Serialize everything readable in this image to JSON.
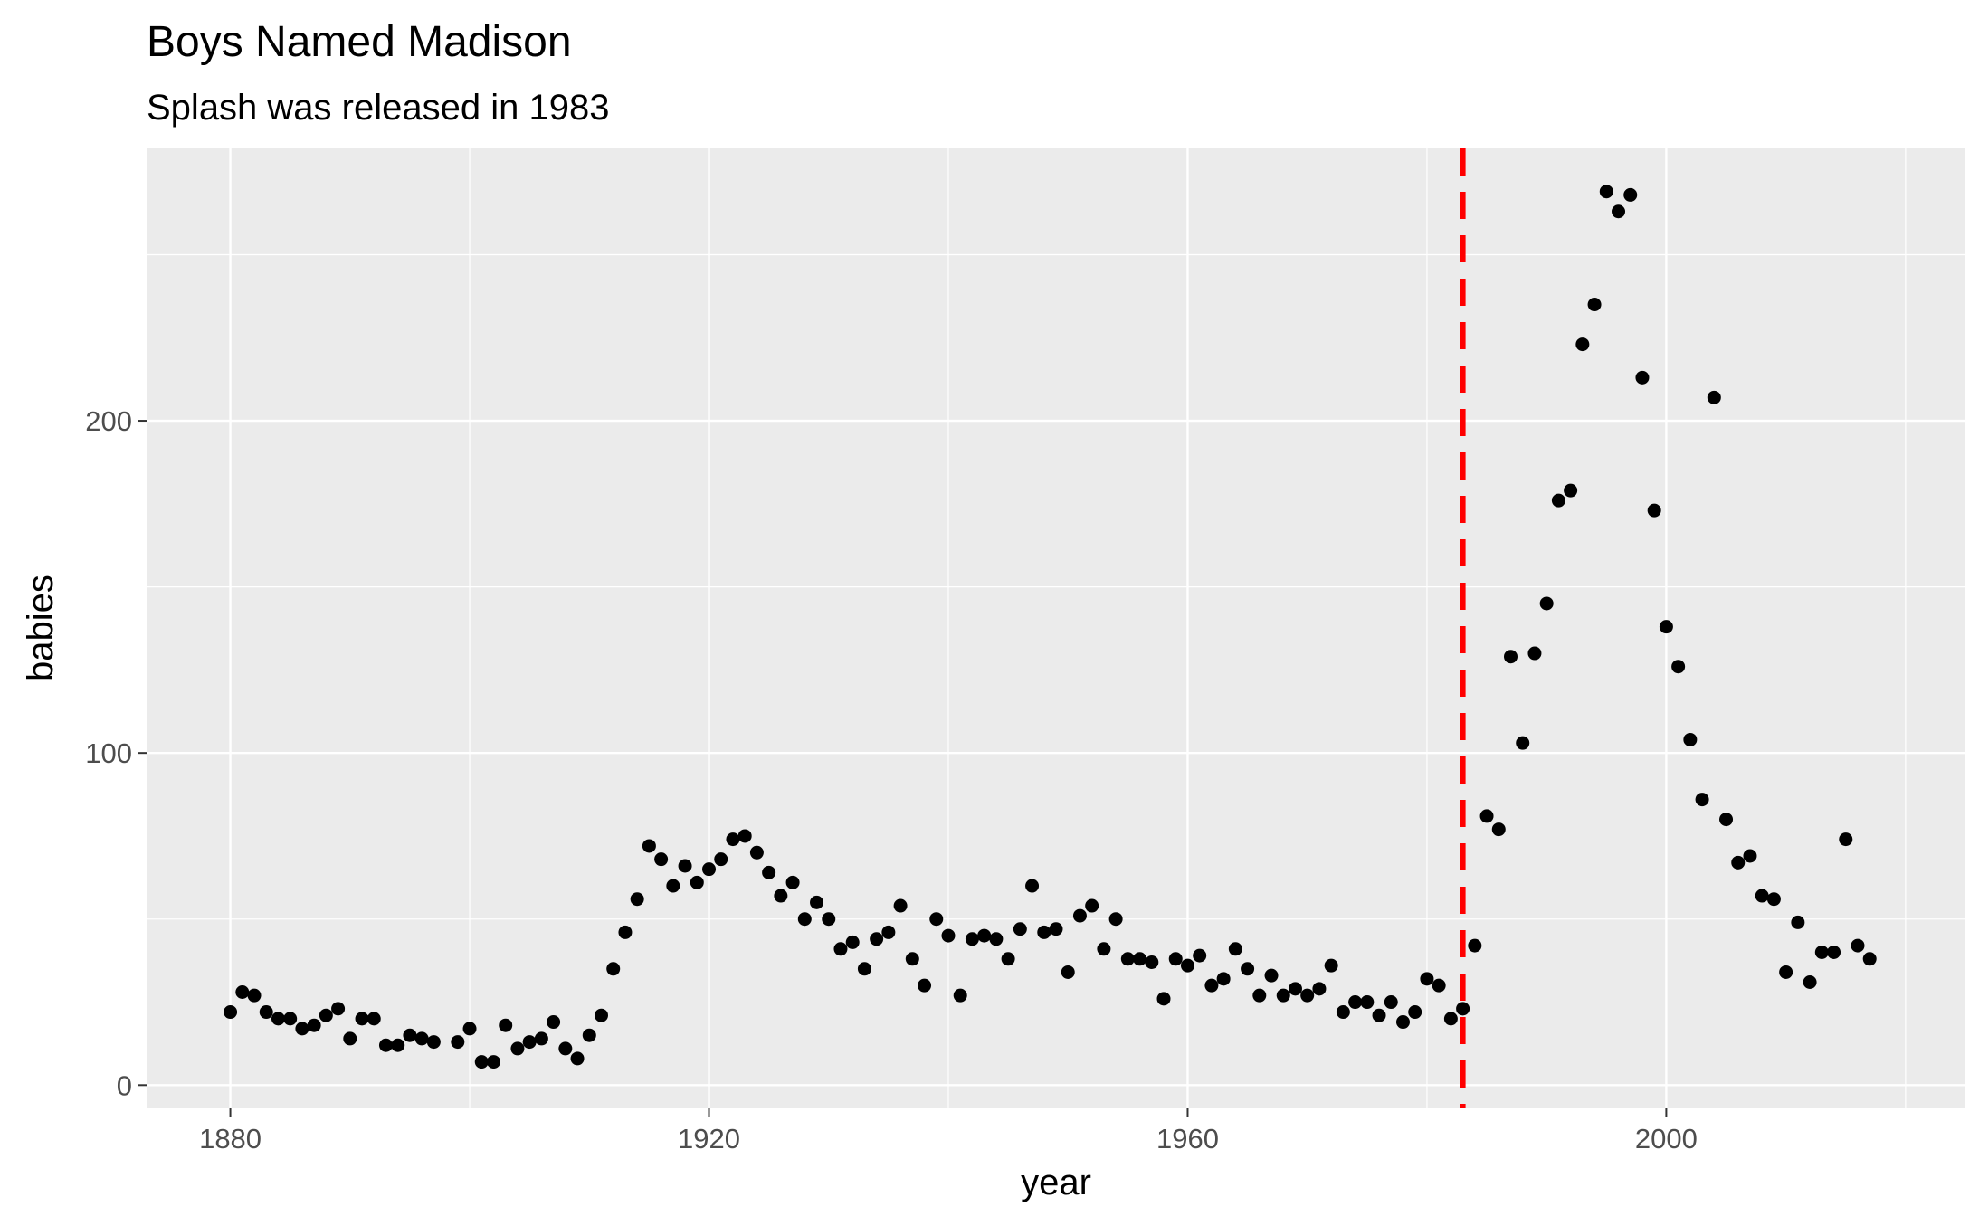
{
  "chart_data": {
    "type": "scatter",
    "title": "Boys Named Madison",
    "subtitle": "Splash was released in 1983",
    "xlabel": "year",
    "ylabel": "babies",
    "xlim": [
      1873,
      2025
    ],
    "ylim": [
      -7,
      282
    ],
    "xticks": [
      1880,
      1920,
      1960,
      2000
    ],
    "yticks": [
      0,
      100,
      200
    ],
    "grid": true,
    "legend": "none",
    "colors": {
      "panel": "#ebebeb",
      "grid": "#ffffff",
      "point": "#000000",
      "reference_line": "#ff0000",
      "tick_label": "#4d4d4d"
    },
    "reference_line": {
      "x": 1983,
      "style": "dashed"
    },
    "series": [
      {
        "x": [
          1880,
          1881,
          1882,
          1883,
          1884,
          1885,
          1886,
          1887,
          1888,
          1889,
          1890,
          1891,
          1892,
          1893,
          1894,
          1895,
          1896,
          1897,
          1899,
          1900,
          1901,
          1902,
          1903,
          1904,
          1905,
          1906,
          1907,
          1908,
          1909,
          1910,
          1911,
          1912,
          1913,
          1914,
          1915,
          1916,
          1917,
          1918,
          1919,
          1920,
          1921,
          1922,
          1923,
          1924,
          1925,
          1926,
          1927,
          1928,
          1929,
          1930,
          1931,
          1932,
          1933,
          1934,
          1935,
          1936,
          1937,
          1938,
          1939,
          1940,
          1941,
          1942,
          1943,
          1944,
          1945,
          1946,
          1947,
          1948,
          1949,
          1950,
          1951,
          1952,
          1953,
          1954,
          1955,
          1956,
          1957,
          1958,
          1959,
          1960,
          1961,
          1962,
          1963,
          1964,
          1965,
          1966,
          1967,
          1968,
          1969,
          1970,
          1971,
          1972,
          1973,
          1974,
          1975,
          1976,
          1977,
          1978,
          1979,
          1980,
          1981,
          1982,
          1983,
          1984,
          1985,
          1986,
          1987,
          1988,
          1989,
          1990,
          1991,
          1992,
          1993,
          1994,
          1995,
          1996,
          1997,
          1998,
          1999,
          2000,
          2001,
          2002,
          2003,
          2004,
          2005,
          2006,
          2007,
          2008,
          2009,
          2010,
          2011,
          2012,
          2013,
          2014,
          2015,
          2016,
          2017
        ],
        "y": [
          22,
          28,
          27,
          22,
          20,
          20,
          17,
          18,
          21,
          23,
          14,
          20,
          20,
          12,
          12,
          15,
          14,
          13,
          13,
          17,
          7,
          7,
          18,
          11,
          13,
          14,
          19,
          11,
          8,
          15,
          21,
          35,
          46,
          56,
          72,
          68,
          60,
          66,
          61,
          65,
          68,
          74,
          75,
          70,
          64,
          57,
          61,
          50,
          55,
          50,
          41,
          43,
          35,
          44,
          46,
          54,
          38,
          30,
          50,
          45,
          27,
          44,
          45,
          44,
          38,
          47,
          60,
          46,
          47,
          34,
          51,
          54,
          41,
          50,
          38,
          38,
          37,
          26,
          38,
          36,
          39,
          30,
          32,
          41,
          35,
          27,
          33,
          27,
          29,
          27,
          29,
          36,
          22,
          25,
          25,
          21,
          25,
          19,
          22,
          32,
          30,
          20,
          23,
          42,
          81,
          77,
          129,
          103,
          130,
          145,
          176,
          179,
          223,
          235,
          269,
          263,
          268,
          213,
          173,
          138,
          126,
          104,
          86,
          207,
          80,
          67,
          69,
          57,
          56,
          34,
          49,
          31,
          40,
          40,
          74,
          42,
          38
        ]
      }
    ]
  }
}
